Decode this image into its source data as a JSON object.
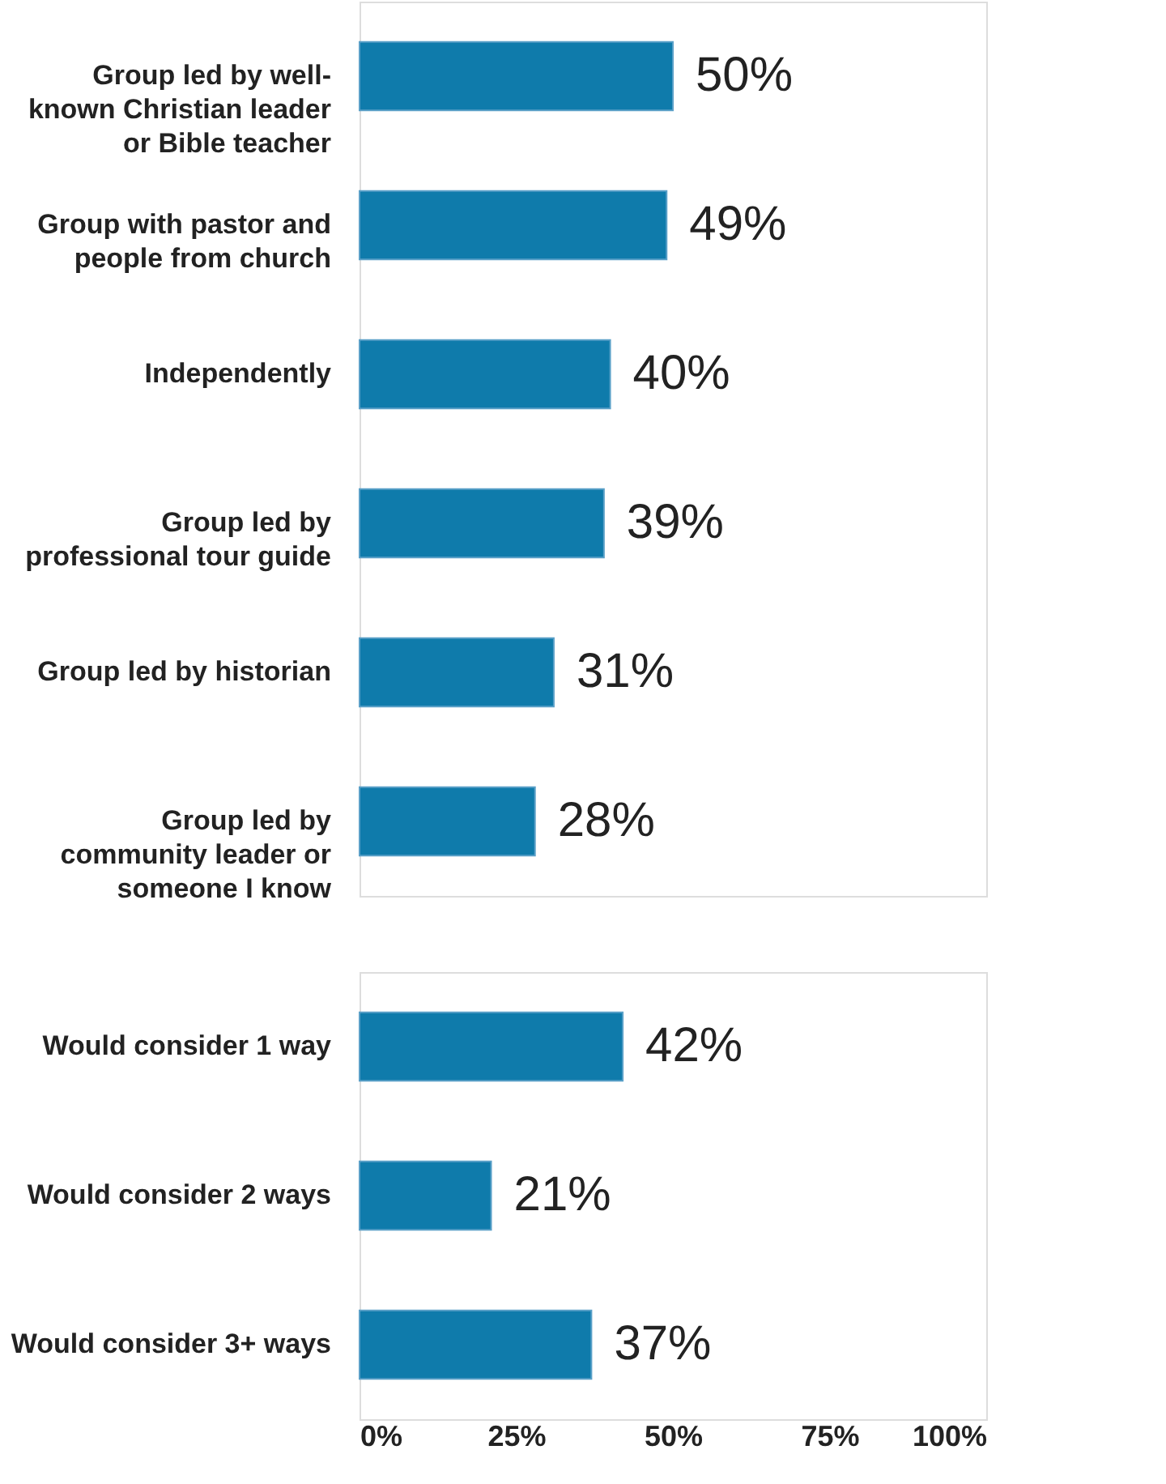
{
  "chart_data": [
    {
      "type": "bar",
      "orientation": "horizontal",
      "categories": [
        "Group led by well-\nknown Christian leader\nor Bible teacher",
        "Group with pastor and\npeople from church",
        "Independently",
        "Group led by\nprofessional tour guide",
        "Group led by historian",
        "Group led by\ncommunity leader or\nsomeone I know"
      ],
      "values": [
        50,
        49,
        40,
        39,
        31,
        28
      ],
      "value_labels": [
        "50%",
        "49%",
        "40%",
        "39%",
        "31%",
        "28%"
      ],
      "color": "#0f7bab",
      "xlim": [
        0,
        100
      ],
      "tick_labels": "y"
    },
    {
      "type": "bar",
      "orientation": "horizontal",
      "categories": [
        "Would consider 1 way",
        "Would consider 2 ways",
        "Would consider 3+ ways"
      ],
      "values": [
        42,
        21,
        37
      ],
      "value_labels": [
        "42%",
        "21%",
        "37%"
      ],
      "color": "#0f7bab",
      "xlim": [
        0,
        100
      ],
      "xticks": [
        {
          "value": 0,
          "label": "0%"
        },
        {
          "value": 25,
          "label": "25%"
        },
        {
          "value": 50,
          "label": "50%"
        },
        {
          "value": 75,
          "label": "75%"
        },
        {
          "value": 100,
          "label": "100%"
        }
      ]
    }
  ]
}
